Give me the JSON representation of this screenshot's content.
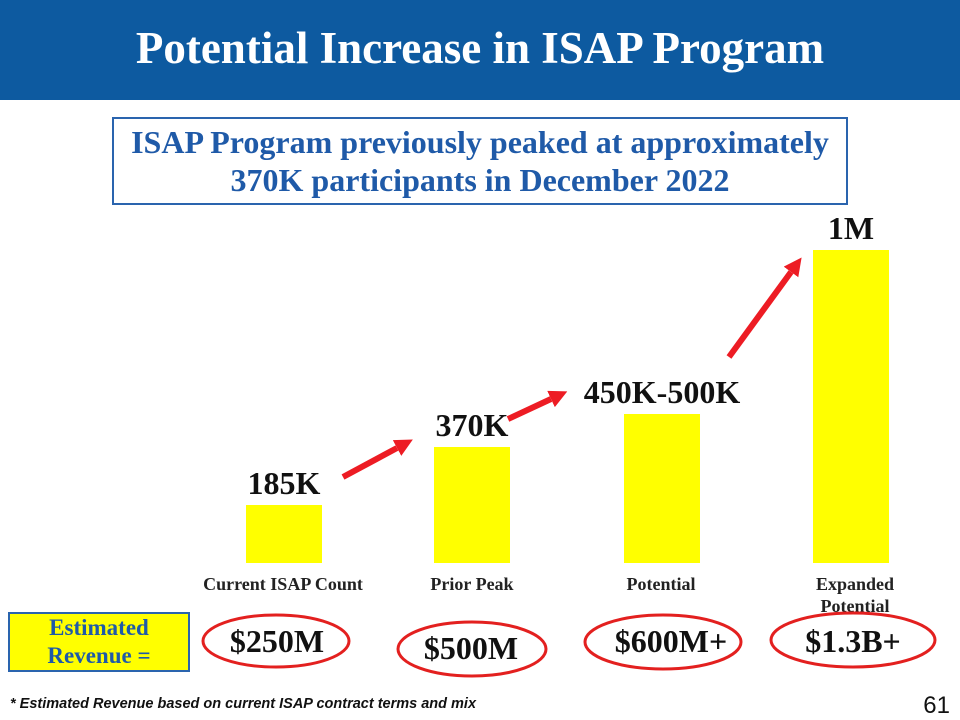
{
  "slide": {
    "title": "Potential Increase in ISAP Program",
    "callout": [
      "ISAP Program previously peaked at approximately",
      "370K participants in December 2022"
    ],
    "revenue_box": [
      "Estimated",
      "Revenue ="
    ],
    "footnote": "* Estimated Revenue based on current ISAP contract terms and mix",
    "page_number": "61"
  },
  "colors": {
    "title_bar": "#0d5aa0",
    "text_blue": "#1f5aa8",
    "bar_fill": "#ffff00",
    "highlight_red": "#ed1c24"
  },
  "chart_data": {
    "type": "bar",
    "categories": [
      "Current ISAP Count",
      "Prior Peak",
      "Potential",
      "Expanded Potential"
    ],
    "values": [
      185000,
      370000,
      475000,
      1000000
    ],
    "data_labels": [
      "185K",
      "370K",
      "450K-500K",
      "1M"
    ],
    "revenue_labels": [
      "$250M",
      "$500M",
      "$600M+",
      "$1.3B+"
    ],
    "ylim": [
      0,
      1000000
    ],
    "grid": false,
    "legend": "none"
  }
}
